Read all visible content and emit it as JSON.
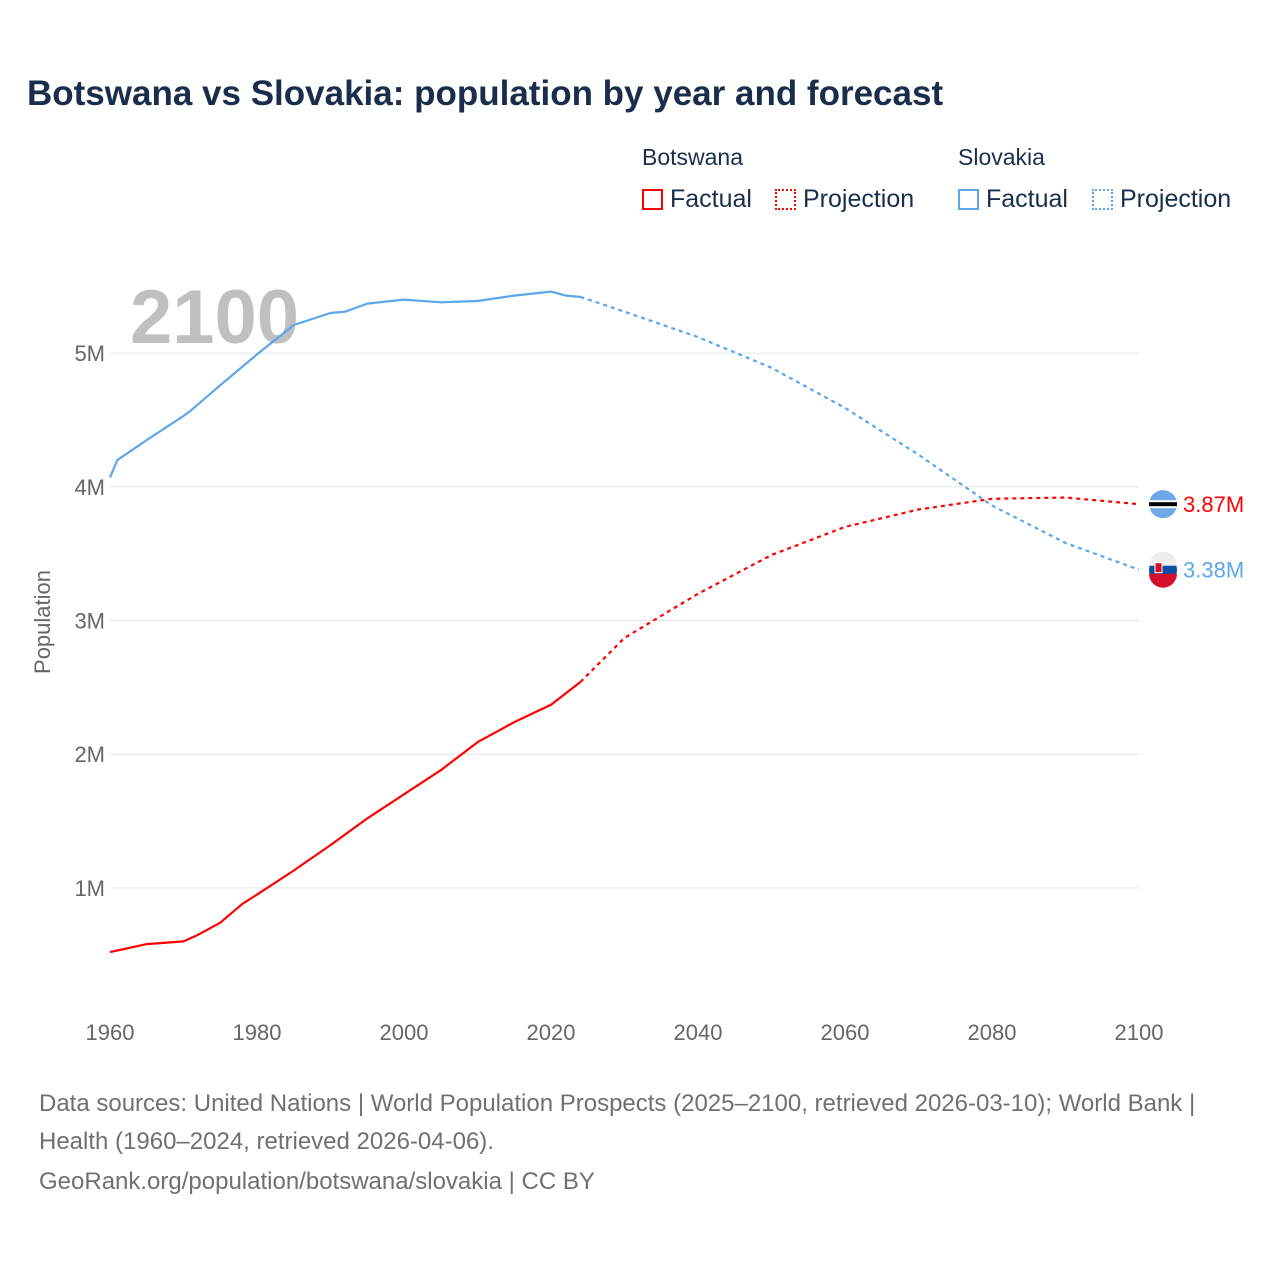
{
  "chart_data": {
    "type": "line",
    "title": "Botswana vs Slovakia: population by year and forecast",
    "xlabel": "",
    "ylabel": "Population",
    "xlim": [
      1960,
      2100
    ],
    "ylim": [
      0,
      5.6
    ],
    "x_ticks": [
      "1960",
      "1980",
      "2000",
      "2020",
      "2040",
      "2060",
      "2080",
      "2100"
    ],
    "y_ticks": [
      {
        "v": 1,
        "label": "1M"
      },
      {
        "v": 2,
        "label": "2M"
      },
      {
        "v": 3,
        "label": "3M"
      },
      {
        "v": 4,
        "label": "4M"
      },
      {
        "v": 5,
        "label": "5M"
      }
    ],
    "year_watermark": "2100",
    "legend": {
      "groups": [
        {
          "name": "Botswana",
          "items": [
            "Factual",
            "Projection"
          ]
        },
        {
          "name": "Slovakia",
          "items": [
            "Factual",
            "Projection"
          ]
        }
      ],
      "placement": "top-right"
    },
    "series": [
      {
        "name": "Botswana",
        "color": "#ff0000",
        "end_label": "3.87M",
        "factual": [
          [
            1960,
            0.52
          ],
          [
            1965,
            0.58
          ],
          [
            1970,
            0.6
          ],
          [
            1972,
            0.65
          ],
          [
            1975,
            0.74
          ],
          [
            1978,
            0.88
          ],
          [
            1980,
            0.95
          ],
          [
            1985,
            1.13
          ],
          [
            1990,
            1.32
          ],
          [
            1995,
            1.52
          ],
          [
            2000,
            1.7
          ],
          [
            2005,
            1.88
          ],
          [
            2010,
            2.09
          ],
          [
            2015,
            2.24
          ],
          [
            2020,
            2.37
          ],
          [
            2024,
            2.54
          ]
        ],
        "projection": [
          [
            2024,
            2.54
          ],
          [
            2030,
            2.87
          ],
          [
            2040,
            3.2
          ],
          [
            2050,
            3.49
          ],
          [
            2060,
            3.7
          ],
          [
            2070,
            3.83
          ],
          [
            2080,
            3.91
          ],
          [
            2090,
            3.92
          ],
          [
            2100,
            3.87
          ]
        ]
      },
      {
        "name": "Slovakia",
        "color": "#5ba7ea",
        "end_label": "3.38M",
        "factual": [
          [
            1960,
            4.07
          ],
          [
            1961,
            4.2
          ],
          [
            1965,
            4.35
          ],
          [
            1970,
            4.53
          ],
          [
            1971,
            4.57
          ],
          [
            1975,
            4.76
          ],
          [
            1980,
            4.99
          ],
          [
            1985,
            5.21
          ],
          [
            1990,
            5.3
          ],
          [
            1992,
            5.31
          ],
          [
            1995,
            5.37
          ],
          [
            2000,
            5.4
          ],
          [
            2005,
            5.38
          ],
          [
            2010,
            5.39
          ],
          [
            2015,
            5.43
          ],
          [
            2020,
            5.46
          ],
          [
            2022,
            5.43
          ],
          [
            2024,
            5.42
          ]
        ],
        "projection": [
          [
            2024,
            5.42
          ],
          [
            2030,
            5.31
          ],
          [
            2040,
            5.12
          ],
          [
            2050,
            4.89
          ],
          [
            2060,
            4.59
          ],
          [
            2070,
            4.24
          ],
          [
            2080,
            3.86
          ],
          [
            2090,
            3.58
          ],
          [
            2100,
            3.38
          ]
        ]
      }
    ]
  },
  "footer": {
    "sources": "Data sources: United Nations | World Population Prospects (2025–2100, retrieved 2026-03-10); World Bank | Health (1960–2024, retrieved 2026-04-06).",
    "credit": "GeoRank.org/population/botswana/slovakia | CC BY"
  }
}
